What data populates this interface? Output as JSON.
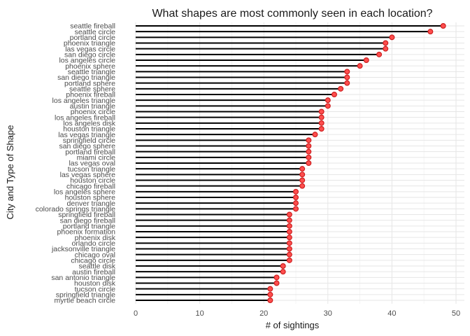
{
  "chart_data": {
    "type": "lollipop",
    "title": "What shapes are most commonly seen in each location?",
    "xlabel": "# of sightings",
    "ylabel": "City and Type of Shape",
    "xlim": [
      0,
      50
    ],
    "x_ticks": [
      "0",
      "10",
      "20",
      "30",
      "40",
      "50"
    ],
    "grid": true,
    "colors": {
      "point": "#ff4d4d",
      "point_stroke": "#cc1f1f",
      "stem": "#000000"
    },
    "categories": [
      "seattle fireball",
      "seattle circle",
      "portland circle",
      "phoenix triangle",
      "las vegas circle",
      "san diego circle",
      "los angeles circle",
      "phoenix sphere",
      "seattle triangle",
      "san diego triangle",
      "portland sphere",
      "seattle sphere",
      "phoenix fireball",
      "los angeles triangle",
      "austin triangle",
      "phoenix circle",
      "los angeles fireball",
      "los angeles disk",
      "houston triangle",
      "las vegas triangle",
      "springfield circle",
      "san diego sphere",
      "portland fireball",
      "miami circle",
      "las vegas oval",
      "tucson triangle",
      "las vegas sphere",
      "houston circle",
      "chicago fireball",
      "los angeles sphere",
      "houston sphere",
      "denver triangle",
      "colorado springs triangle",
      "springfield fireball",
      "san diego fireball",
      "portland triangle",
      "phoenix formation",
      "phoenix disk",
      "orlando circle",
      "jacksonville triangle",
      "chicago oval",
      "chicago circle",
      "seattle disk",
      "austin fireball",
      "san antonio triangle",
      "houston disk",
      "tucson circle",
      "springfield triangle",
      "myrtle beach circle"
    ],
    "values": [
      48,
      46,
      40,
      39,
      39,
      38,
      36,
      35,
      33,
      33,
      33,
      32,
      31,
      30,
      30,
      29,
      29,
      29,
      29,
      28,
      27,
      27,
      27,
      27,
      27,
      26,
      26,
      26,
      26,
      25,
      25,
      25,
      25,
      24,
      24,
      24,
      24,
      24,
      24,
      24,
      24,
      24,
      23,
      23,
      22,
      22,
      21,
      21,
      21
    ]
  }
}
